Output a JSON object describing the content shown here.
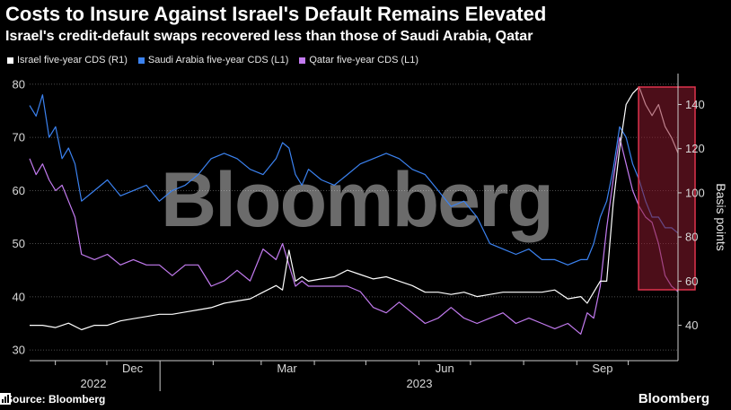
{
  "header": {
    "title": "Costs to Insure Against Israel's Default Remains Elevated",
    "subtitle": "Israel's credit-default swaps recovered less than those of Saudi Arabia, Qatar"
  },
  "footer": {
    "source": "Source: Bloomberg",
    "brand": "Bloomberg"
  },
  "watermark": "Bloomberg",
  "colors": {
    "israel": "#ffffff",
    "saudi": "#3b82f0",
    "qatar": "#c37bf0",
    "highlight_fill": "#8b1a2e",
    "highlight_stroke": "#e0334d"
  },
  "chart_data": {
    "type": "line",
    "title": "Costs to Insure Against Israel's Default Remains Elevated",
    "x_range": [
      "2022-10-17",
      "2023-10-30"
    ],
    "x_ticks": [
      "Dec",
      "Mar",
      "Jun",
      "Sep"
    ],
    "year_labels": [
      "2022",
      "2023"
    ],
    "y_left": {
      "min": 28,
      "max": 82,
      "ticks": [
        30,
        40,
        50,
        60,
        70,
        80
      ]
    },
    "y_right": {
      "min": 24,
      "max": 154,
      "ticks": [
        40,
        60,
        80,
        100,
        120,
        140
      ],
      "label": "Basis points"
    },
    "highlight_period": [
      "2023-10-07",
      "2023-10-30"
    ],
    "series": [
      {
        "name": "Israel five-year CDS (R1)",
        "axis": "right",
        "color": "#ffffff",
        "x": [
          0,
          0.02,
          0.04,
          0.06,
          0.08,
          0.1,
          0.12,
          0.14,
          0.16,
          0.18,
          0.2,
          0.22,
          0.24,
          0.26,
          0.28,
          0.3,
          0.32,
          0.34,
          0.36,
          0.38,
          0.39,
          0.4,
          0.41,
          0.42,
          0.43,
          0.45,
          0.47,
          0.49,
          0.51,
          0.53,
          0.55,
          0.57,
          0.59,
          0.61,
          0.63,
          0.65,
          0.67,
          0.69,
          0.71,
          0.73,
          0.75,
          0.77,
          0.79,
          0.81,
          0.83,
          0.85,
          0.86,
          0.87,
          0.88,
          0.89,
          0.9,
          0.91,
          0.92,
          0.93,
          0.94,
          0.95,
          0.96,
          0.97,
          0.98,
          0.99,
          1
        ],
        "values": [
          40,
          40,
          39,
          41,
          38,
          40,
          40,
          42,
          43,
          44,
          45,
          45,
          46,
          47,
          48,
          50,
          51,
          52,
          55,
          58,
          56,
          74,
          60,
          62,
          60,
          61,
          62,
          65,
          63,
          61,
          62,
          60,
          58,
          55,
          55,
          54,
          55,
          53,
          54,
          55,
          55,
          55,
          55,
          56,
          52,
          53,
          50,
          55,
          60,
          60,
          95,
          120,
          140,
          145,
          148,
          140,
          135,
          140,
          130,
          125,
          118
        ]
      },
      {
        "name": "Saudi Arabia five-year CDS (L1)",
        "axis": "left",
        "color": "#3b82f0",
        "x": [
          0,
          0.01,
          0.02,
          0.03,
          0.04,
          0.05,
          0.06,
          0.07,
          0.08,
          0.1,
          0.12,
          0.14,
          0.16,
          0.18,
          0.2,
          0.22,
          0.24,
          0.26,
          0.28,
          0.3,
          0.32,
          0.34,
          0.36,
          0.38,
          0.39,
          0.4,
          0.41,
          0.42,
          0.43,
          0.45,
          0.47,
          0.49,
          0.51,
          0.53,
          0.55,
          0.57,
          0.59,
          0.61,
          0.63,
          0.65,
          0.67,
          0.69,
          0.71,
          0.73,
          0.75,
          0.77,
          0.79,
          0.81,
          0.83,
          0.85,
          0.86,
          0.87,
          0.88,
          0.89,
          0.9,
          0.91,
          0.92,
          0.93,
          0.94,
          0.95,
          0.96,
          0.97,
          0.98,
          0.99,
          1
        ],
        "values": [
          76,
          74,
          78,
          70,
          72,
          66,
          68,
          65,
          58,
          60,
          62,
          59,
          60,
          61,
          58,
          60,
          61,
          63,
          66,
          67,
          66,
          64,
          63,
          66,
          69,
          68,
          63,
          61,
          64,
          62,
          61,
          63,
          65,
          66,
          67,
          66,
          64,
          63,
          60,
          57,
          58,
          55,
          50,
          49,
          48,
          49,
          47,
          47,
          46,
          47,
          47,
          50,
          55,
          58,
          64,
          72,
          70,
          65,
          62,
          58,
          55,
          55,
          53,
          53,
          52
        ]
      },
      {
        "name": "Qatar five-year CDS (L1)",
        "axis": "left",
        "color": "#c37bf0",
        "x": [
          0,
          0.01,
          0.02,
          0.03,
          0.04,
          0.05,
          0.06,
          0.07,
          0.08,
          0.1,
          0.12,
          0.14,
          0.16,
          0.18,
          0.2,
          0.22,
          0.24,
          0.26,
          0.28,
          0.3,
          0.32,
          0.34,
          0.36,
          0.38,
          0.39,
          0.4,
          0.41,
          0.42,
          0.43,
          0.45,
          0.47,
          0.49,
          0.51,
          0.53,
          0.55,
          0.57,
          0.59,
          0.61,
          0.63,
          0.65,
          0.67,
          0.69,
          0.71,
          0.73,
          0.75,
          0.77,
          0.79,
          0.81,
          0.83,
          0.85,
          0.86,
          0.87,
          0.88,
          0.89,
          0.9,
          0.91,
          0.92,
          0.93,
          0.94,
          0.95,
          0.96,
          0.97,
          0.98,
          0.99,
          1
        ],
        "values": [
          66,
          63,
          65,
          62,
          60,
          61,
          58,
          55,
          48,
          47,
          48,
          46,
          47,
          46,
          46,
          44,
          46,
          46,
          42,
          43,
          45,
          43,
          49,
          47,
          50,
          46,
          42,
          43,
          42,
          42,
          42,
          42,
          41,
          38,
          37,
          39,
          37,
          35,
          36,
          38,
          36,
          35,
          36,
          37,
          35,
          36,
          35,
          34,
          35,
          33,
          37,
          36,
          42,
          53,
          62,
          70,
          65,
          60,
          57,
          55,
          54,
          50,
          44,
          42,
          41
        ]
      }
    ]
  }
}
